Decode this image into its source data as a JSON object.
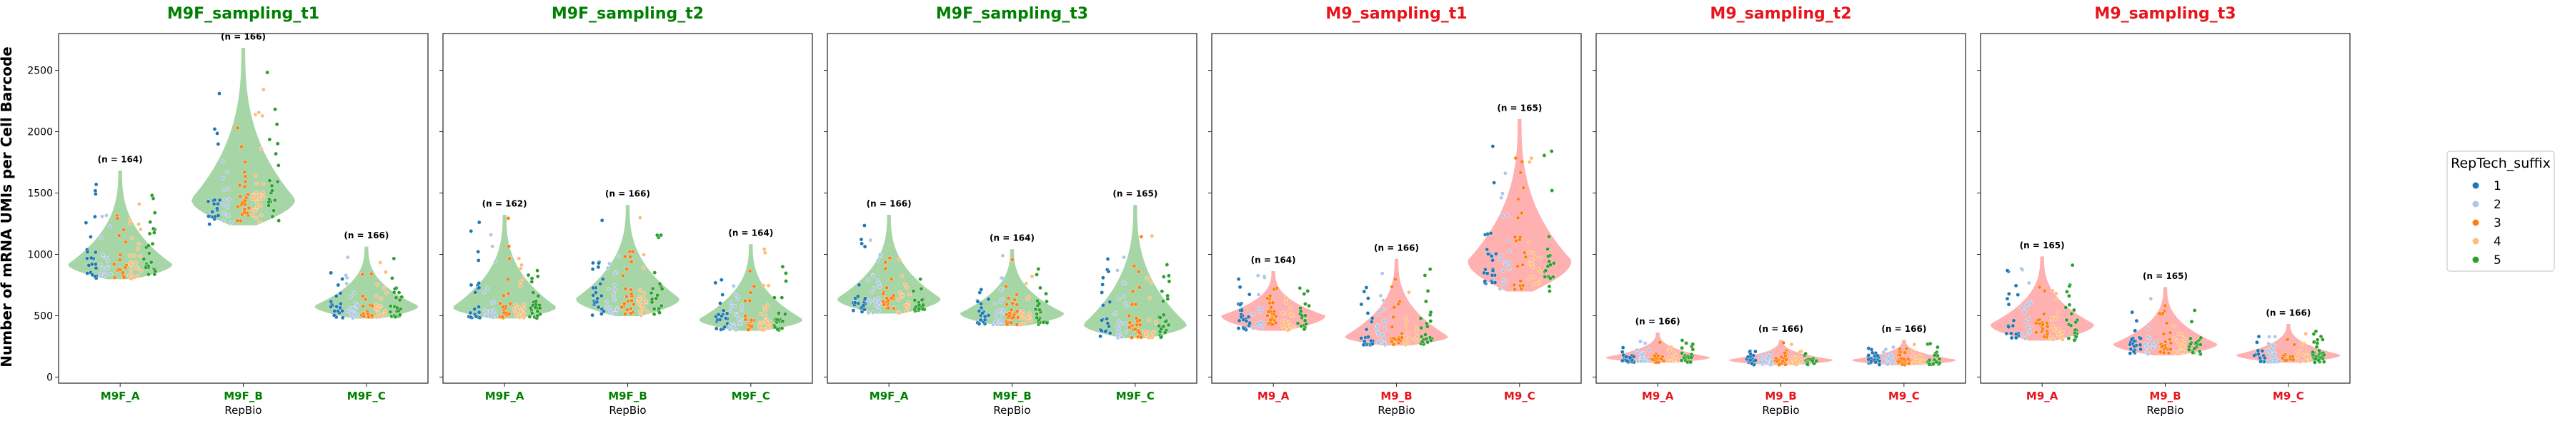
{
  "figure": {
    "ylabel": "Number of mRNA UMIs per Cell Barcode",
    "xlabel": "RepBio",
    "y_ticks": [
      0,
      500,
      1000,
      1500,
      2000,
      2500
    ],
    "legend": {
      "title": "RepTech_suffix",
      "placement": "right",
      "entries": [
        {
          "label": "1",
          "color": "#1f77b4"
        },
        {
          "label": "2",
          "color": "#aec7e8"
        },
        {
          "label": "3",
          "color": "#ff7f0e"
        },
        {
          "label": "4",
          "color": "#ffbb78"
        },
        {
          "label": "5",
          "color": "#2ca02c"
        }
      ]
    }
  },
  "chart_data": [
    {
      "type": "violin",
      "title": "M9F_sampling_t1",
      "title_color": "#008000",
      "violin_fill": "#9fd39f",
      "ylim": [
        -50,
        2800
      ],
      "categories": [
        "M9F_A",
        "M9F_B",
        "M9F_C"
      ],
      "counts": [
        "(n = 164)",
        "(n = 166)",
        "(n = 166)"
      ],
      "violins": [
        {
          "min": 800,
          "max": 1680,
          "median": 920
        },
        {
          "min": 1240,
          "max": 2680,
          "median": 1450
        },
        {
          "min": 480,
          "max": 1060,
          "median": 580
        }
      ]
    },
    {
      "type": "violin",
      "title": "M9F_sampling_t2",
      "title_color": "#008000",
      "violin_fill": "#9fd39f",
      "ylim": [
        -50,
        2800
      ],
      "categories": [
        "M9F_A",
        "M9F_B",
        "M9F_C"
      ],
      "counts": [
        "(n = 162)",
        "(n = 166)",
        "(n = 164)"
      ],
      "violins": [
        {
          "min": 480,
          "max": 1320,
          "median": 570
        },
        {
          "min": 500,
          "max": 1400,
          "median": 640
        },
        {
          "min": 380,
          "max": 1080,
          "median": 470
        }
      ]
    },
    {
      "type": "violin",
      "title": "M9F_sampling_t3",
      "title_color": "#008000",
      "violin_fill": "#9fd39f",
      "ylim": [
        -50,
        2800
      ],
      "categories": [
        "M9F_A",
        "M9F_B",
        "M9F_C"
      ],
      "counts": [
        "(n = 166)",
        "(n = 164)",
        "(n = 165)"
      ],
      "violins": [
        {
          "min": 520,
          "max": 1320,
          "median": 640
        },
        {
          "min": 420,
          "max": 1040,
          "median": 520
        },
        {
          "min": 320,
          "max": 1400,
          "median": 430
        }
      ]
    },
    {
      "type": "violin",
      "title": "M9_sampling_t1",
      "title_color": "#e8141c",
      "violin_fill": "#ffaaaa",
      "ylim": [
        -50,
        2800
      ],
      "categories": [
        "M9_A",
        "M9_B",
        "M9_C"
      ],
      "counts": [
        "(n = 164)",
        "(n = 166)",
        "(n = 165)"
      ],
      "violins": [
        {
          "min": 380,
          "max": 860,
          "median": 500
        },
        {
          "min": 260,
          "max": 960,
          "median": 330
        },
        {
          "min": 700,
          "max": 2100,
          "median": 950
        }
      ]
    },
    {
      "type": "violin",
      "title": "M9_sampling_t2",
      "title_color": "#e8141c",
      "violin_fill": "#ffaaaa",
      "ylim": [
        -50,
        2800
      ],
      "categories": [
        "M9_A",
        "M9_B",
        "M9_C"
      ],
      "counts": [
        "(n = 166)",
        "(n = 166)",
        "(n = 166)"
      ],
      "violins": [
        {
          "min": 120,
          "max": 360,
          "median": 160
        },
        {
          "min": 100,
          "max": 300,
          "median": 140
        },
        {
          "min": 100,
          "max": 300,
          "median": 140
        }
      ]
    },
    {
      "type": "violin",
      "title": "M9_sampling_t3",
      "title_color": "#e8141c",
      "violin_fill": "#ffaaaa",
      "ylim": [
        -50,
        2800
      ],
      "categories": [
        "M9_A",
        "M9_B",
        "M9_C"
      ],
      "counts": [
        "(n = 165)",
        "(n = 165)",
        "(n = 166)"
      ],
      "violins": [
        {
          "min": 300,
          "max": 980,
          "median": 430
        },
        {
          "min": 180,
          "max": 730,
          "median": 270
        },
        {
          "min": 120,
          "max": 430,
          "median": 180
        }
      ]
    }
  ]
}
